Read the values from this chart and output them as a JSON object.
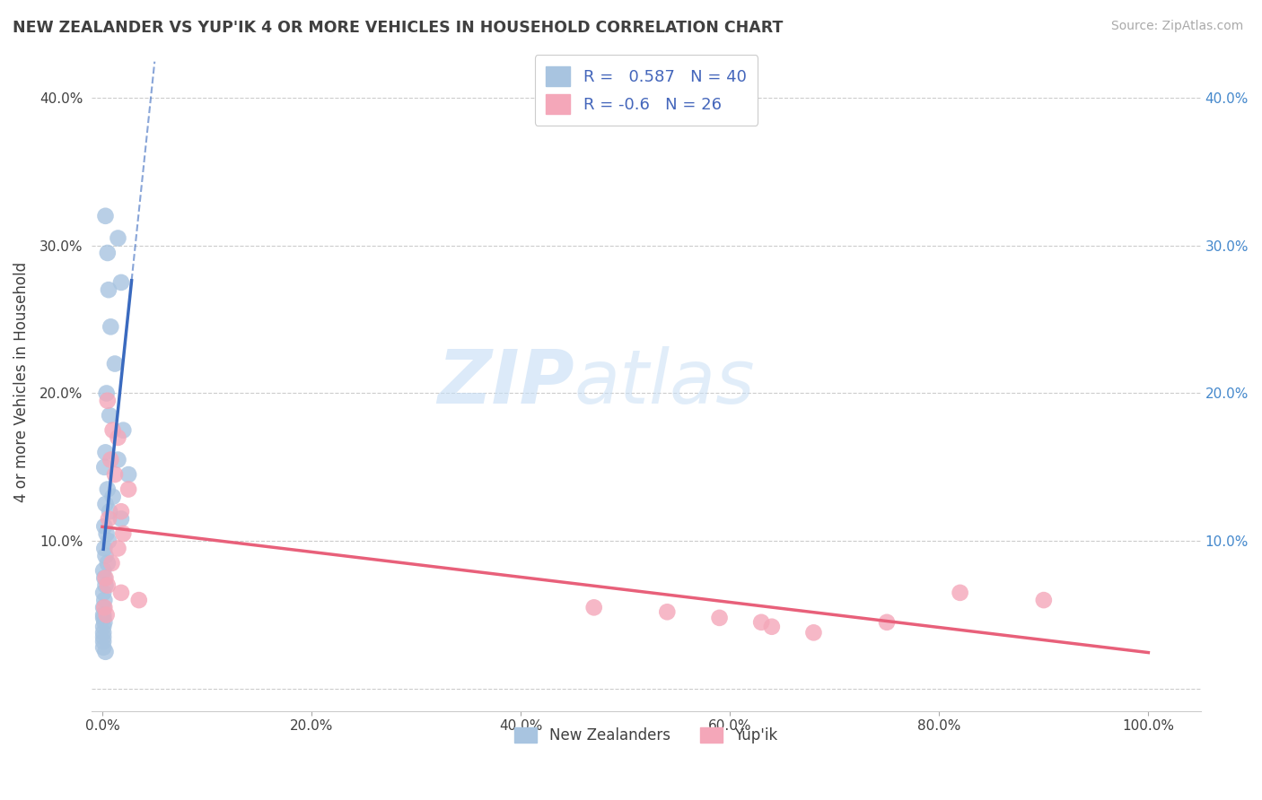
{
  "title": "NEW ZEALANDER VS YUP'IK 4 OR MORE VEHICLES IN HOUSEHOLD CORRELATION CHART",
  "source": "Source: ZipAtlas.com",
  "ylabel": "4 or more Vehicles in Household",
  "r_blue": 0.587,
  "n_blue": 40,
  "r_pink": -0.6,
  "n_pink": 26,
  "blue_color": "#a8c4e0",
  "pink_color": "#f4a7b9",
  "blue_line_color": "#3a6abf",
  "pink_line_color": "#e8607a",
  "watermark_zip": "ZIP",
  "watermark_atlas": "atlas",
  "blue_scatter": [
    [
      0.3,
      32.0
    ],
    [
      0.5,
      29.5
    ],
    [
      0.6,
      27.0
    ],
    [
      1.5,
      30.5
    ],
    [
      1.8,
      27.5
    ],
    [
      0.8,
      24.5
    ],
    [
      1.2,
      22.0
    ],
    [
      0.4,
      20.0
    ],
    [
      0.7,
      18.5
    ],
    [
      2.0,
      17.5
    ],
    [
      0.3,
      16.0
    ],
    [
      1.5,
      15.5
    ],
    [
      2.5,
      14.5
    ],
    [
      0.2,
      15.0
    ],
    [
      0.5,
      13.5
    ],
    [
      1.0,
      13.0
    ],
    [
      0.3,
      12.5
    ],
    [
      0.7,
      12.0
    ],
    [
      1.8,
      11.5
    ],
    [
      0.2,
      11.0
    ],
    [
      0.4,
      10.5
    ],
    [
      0.6,
      10.0
    ],
    [
      0.2,
      9.5
    ],
    [
      0.3,
      9.0
    ],
    [
      0.5,
      8.5
    ],
    [
      0.1,
      8.0
    ],
    [
      0.2,
      7.5
    ],
    [
      0.3,
      7.0
    ],
    [
      0.1,
      6.5
    ],
    [
      0.2,
      6.0
    ],
    [
      0.1,
      5.5
    ],
    [
      0.1,
      5.0
    ],
    [
      0.1,
      4.8
    ],
    [
      0.2,
      4.5
    ],
    [
      0.1,
      4.2
    ],
    [
      0.1,
      3.8
    ],
    [
      0.1,
      3.5
    ],
    [
      0.1,
      3.2
    ],
    [
      0.1,
      2.8
    ],
    [
      0.3,
      2.5
    ]
  ],
  "pink_scatter": [
    [
      0.5,
      19.5
    ],
    [
      1.0,
      17.5
    ],
    [
      1.5,
      17.0
    ],
    [
      0.8,
      15.5
    ],
    [
      1.2,
      14.5
    ],
    [
      2.5,
      13.5
    ],
    [
      1.8,
      12.0
    ],
    [
      0.6,
      11.5
    ],
    [
      2.0,
      10.5
    ],
    [
      1.5,
      9.5
    ],
    [
      0.9,
      8.5
    ],
    [
      0.3,
      7.5
    ],
    [
      0.5,
      7.0
    ],
    [
      1.8,
      6.5
    ],
    [
      3.5,
      6.0
    ],
    [
      0.2,
      5.5
    ],
    [
      0.4,
      5.0
    ],
    [
      47.0,
      5.5
    ],
    [
      54.0,
      5.2
    ],
    [
      59.0,
      4.8
    ],
    [
      63.0,
      4.5
    ],
    [
      64.0,
      4.2
    ],
    [
      68.0,
      3.8
    ],
    [
      75.0,
      4.5
    ],
    [
      82.0,
      6.5
    ],
    [
      90.0,
      6.0
    ]
  ],
  "xlim": [
    -1.0,
    105.0
  ],
  "ylim": [
    -1.5,
    43.0
  ],
  "xticks": [
    0.0,
    20.0,
    40.0,
    60.0,
    80.0,
    100.0
  ],
  "yticks": [
    0.0,
    10.0,
    20.0,
    30.0,
    40.0
  ],
  "xticklabels": [
    "0.0%",
    "20.0%",
    "40.0%",
    "60.0%",
    "80.0%",
    "100.0%"
  ],
  "yticklabels_left": [
    "",
    "10.0%",
    "20.0%",
    "30.0%",
    "40.0%"
  ],
  "yticklabels_right": [
    "",
    "10.0%",
    "20.0%",
    "30.0%",
    "40.0%"
  ],
  "background_color": "#ffffff",
  "grid_color": "#cccccc",
  "text_color": "#404040"
}
